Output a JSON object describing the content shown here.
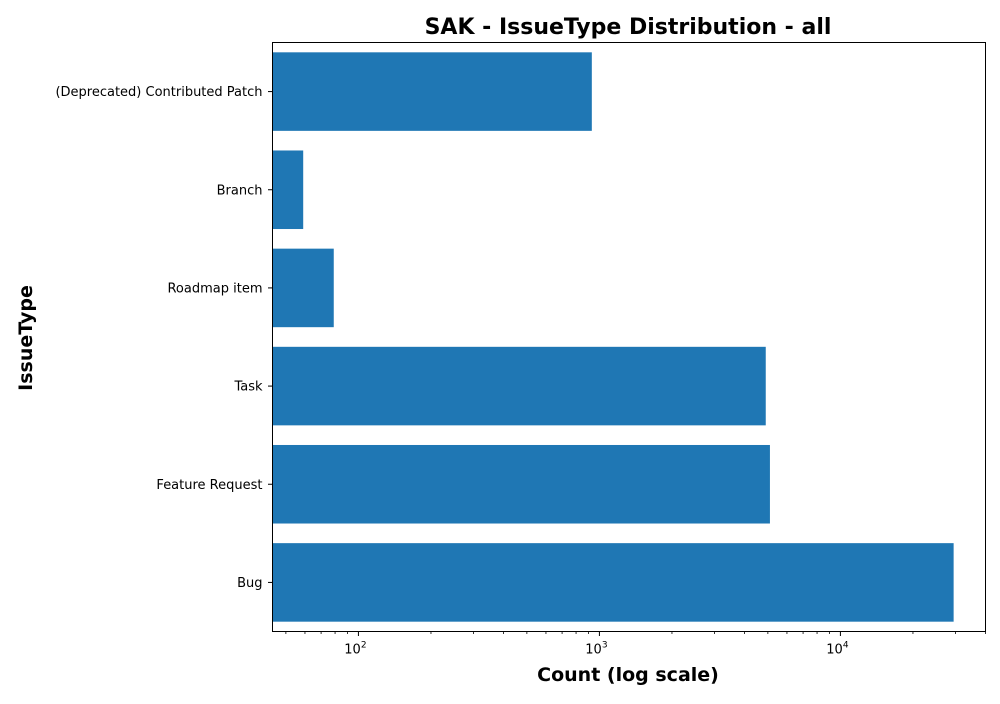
{
  "chart_data": {
    "type": "bar",
    "orientation": "horizontal",
    "title": "SAK - IssueType Distribution - all",
    "xlabel": "Count (log scale)",
    "ylabel": "IssueType",
    "x_scale": "log",
    "xlim": [
      44,
      40000
    ],
    "x_ticks": [
      {
        "value": 100,
        "base": "10",
        "exp": "2"
      },
      {
        "value": 1000,
        "base": "10",
        "exp": "3"
      },
      {
        "value": 10000,
        "base": "10",
        "exp": "4"
      }
    ],
    "categories": [
      "(Deprecated) Contributed Patch",
      "Branch",
      "Roadmap item",
      "Task",
      "Feature Request",
      "Bug"
    ],
    "values": [
      930,
      59,
      79,
      4900,
      5100,
      29500
    ],
    "bar_color": "#1f77b4",
    "grid": false,
    "legend": "none"
  }
}
